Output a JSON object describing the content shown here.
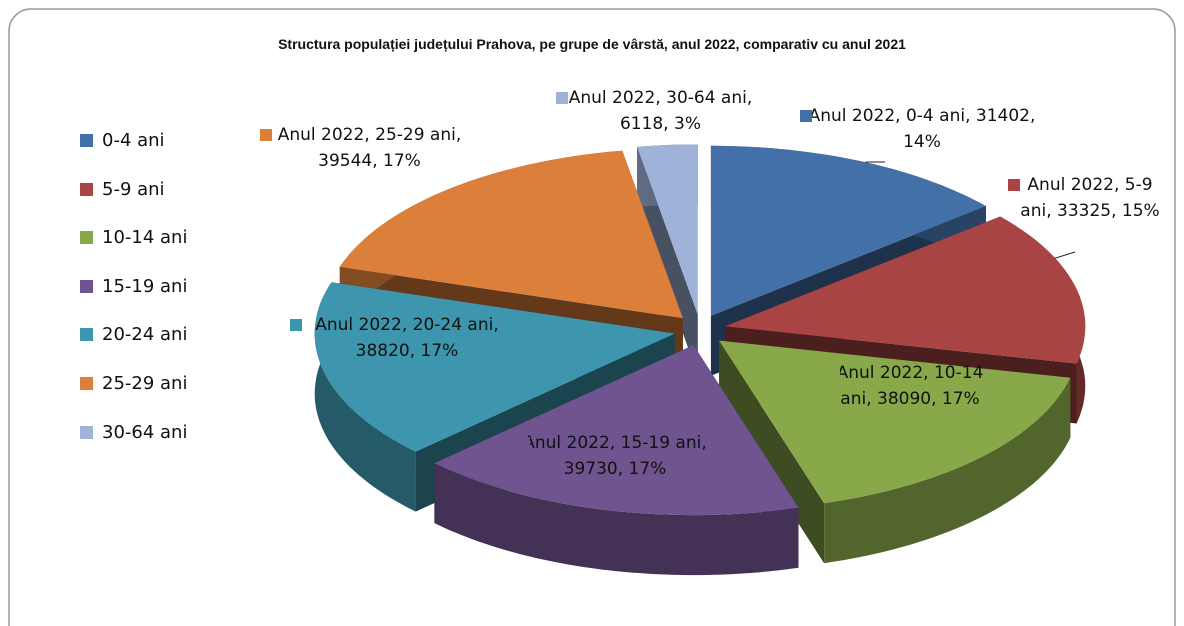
{
  "chart_data": {
    "type": "pie3d",
    "title": "Structura populației județului Prahova, pe grupe de vârstă, anul 2022, comparativ cu anul 2021",
    "categories": [
      "0-4 ani",
      "5-9 ani",
      "10-14 ani",
      "15-19 ani",
      "20-24 ani",
      "25-29 ani",
      "30-64 ani"
    ],
    "values": [
      31402,
      33325,
      38090,
      39730,
      38820,
      39544,
      6118
    ],
    "value_labels": [
      "Anul 2022, 0-4 ani, 31402, 14%",
      "Anul 2022, 5-9 ani, 33325, 15%",
      "Anul 2022, 10-14 ani, 38090, 17%",
      "Anul 2022, 15-19 ani, 39730, 17%",
      "Anul 2022, 20-24 ani, 38820, 17%",
      "Anul 2022, 25-29 ani, 39544, 17%",
      "Anul 2022, 30-64 ani, 6118, 3%"
    ],
    "colors": [
      "#4470a8",
      "#a84444",
      "#88a84a",
      "#6f5490",
      "#3d96ad",
      "#db7f3a",
      "#9fb3d9"
    ],
    "legend": "left"
  }
}
